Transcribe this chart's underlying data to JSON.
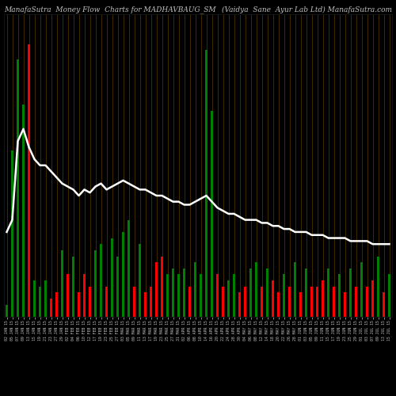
{
  "title_left": "ManafaSutra  Money Flow  Charts for MADHAVBAUG_SM",
  "title_right": "(Vaidya  Sane  Ayur Lab Ltd) ManafaSutra.com",
  "background_color": "#000000",
  "bar_colors": [
    "green",
    "green",
    "green",
    "green",
    "red",
    "green",
    "green",
    "green",
    "red",
    "red",
    "green",
    "red",
    "green",
    "red",
    "red",
    "red",
    "green",
    "green",
    "red",
    "green",
    "green",
    "green",
    "green",
    "red",
    "green",
    "red",
    "red",
    "red",
    "red",
    "green",
    "green",
    "green",
    "green",
    "red",
    "green",
    "green",
    "green",
    "red",
    "red",
    "red",
    "green",
    "green",
    "red",
    "red",
    "green",
    "green",
    "red",
    "green",
    "red",
    "red",
    "green",
    "red",
    "green",
    "red",
    "green",
    "red",
    "red",
    "red",
    "green",
    "red",
    "green",
    "red",
    "green",
    "red",
    "green",
    "red",
    "red",
    "green",
    "red",
    "green"
  ],
  "bar_heights": [
    4,
    8,
    20,
    15,
    10,
    12,
    10,
    12,
    6,
    8,
    22,
    14,
    20,
    8,
    14,
    10,
    22,
    24,
    10,
    26,
    20,
    28,
    32,
    10,
    24,
    8,
    10,
    18,
    20,
    14,
    16,
    14,
    16,
    10,
    18,
    14,
    16,
    10,
    14,
    10,
    12,
    14,
    8,
    10,
    16,
    18,
    10,
    16,
    12,
    8,
    14,
    10,
    18,
    8,
    16,
    10,
    10,
    12,
    16,
    10,
    14,
    8,
    16,
    10,
    18,
    10,
    12,
    20,
    8,
    14
  ],
  "tall_bars": {
    "indices": [
      1,
      2,
      3,
      4,
      36,
      37
    ],
    "heights": [
      55,
      85,
      70,
      90,
      88,
      68
    ],
    "colors": [
      "green",
      "green",
      "green",
      "red",
      "green",
      "green"
    ]
  },
  "line_values": [
    28,
    32,
    58,
    62,
    56,
    52,
    50,
    50,
    48,
    46,
    44,
    43,
    42,
    40,
    42,
    41,
    43,
    44,
    42,
    43,
    44,
    45,
    44,
    43,
    42,
    42,
    41,
    40,
    40,
    39,
    38,
    38,
    37,
    37,
    38,
    39,
    40,
    38,
    36,
    35,
    34,
    34,
    33,
    32,
    32,
    32,
    31,
    31,
    30,
    30,
    29,
    29,
    28,
    28,
    28,
    27,
    27,
    27,
    26,
    26,
    26,
    26,
    25,
    25,
    25,
    25,
    24,
    24,
    24,
    24
  ],
  "n_bars": 70,
  "ylim": [
    0,
    100
  ],
  "text_color": "#c0c0c0",
  "title_fontsize": 6.5,
  "tick_fontsize": 3.5,
  "line_color": "#ffffff",
  "line_width": 1.8,
  "separator_color": "#5a3a00",
  "tick_labels": [
    "02 JAN 15",
    "05 JAN 15",
    "07 JAN 15",
    "09 JAN 15",
    "13 JAN 15",
    "15 JAN 15",
    "19 JAN 15",
    "21 JAN 15",
    "23 JAN 15",
    "27 JAN 15",
    "29 JAN 15",
    "02 FEB 15",
    "04 FEB 15",
    "06 FEB 15",
    "10 FEB 15",
    "12 FEB 15",
    "17 FEB 15",
    "19 FEB 15",
    "23 FEB 15",
    "25 FEB 15",
    "27 FEB 15",
    "03 MAR 15",
    "05 MAR 15",
    "09 MAR 15",
    "11 MAR 15",
    "13 MAR 15",
    "17 MAR 15",
    "19 MAR 15",
    "23 MAR 15",
    "25 MAR 15",
    "27 MAR 15",
    "31 MAR 15",
    "02 APR 15",
    "06 APR 15",
    "08 APR 15",
    "10 APR 15",
    "14 APR 15",
    "16 APR 15",
    "20 APR 15",
    "22 APR 15",
    "24 APR 15",
    "28 APR 15",
    "30 APR 15",
    "04 MAY 15",
    "06 MAY 15",
    "08 MAY 15",
    "12 MAY 15",
    "14 MAY 15",
    "18 MAY 15",
    "20 MAY 15",
    "22 MAY 15",
    "26 MAY 15",
    "28 MAY 15",
    "01 JUN 15",
    "03 JUN 15",
    "05 JUN 15",
    "09 JUN 15",
    "11 JUN 15",
    "15 JUN 15",
    "17 JUN 15",
    "19 JUN 15",
    "23 JUN 15",
    "25 JUN 15",
    "29 JUN 15",
    "01 JUL 15",
    "03 JUL 15",
    "07 JUL 15",
    "09 JUL 15",
    "13 JUL 15",
    "15 JUL 15"
  ]
}
